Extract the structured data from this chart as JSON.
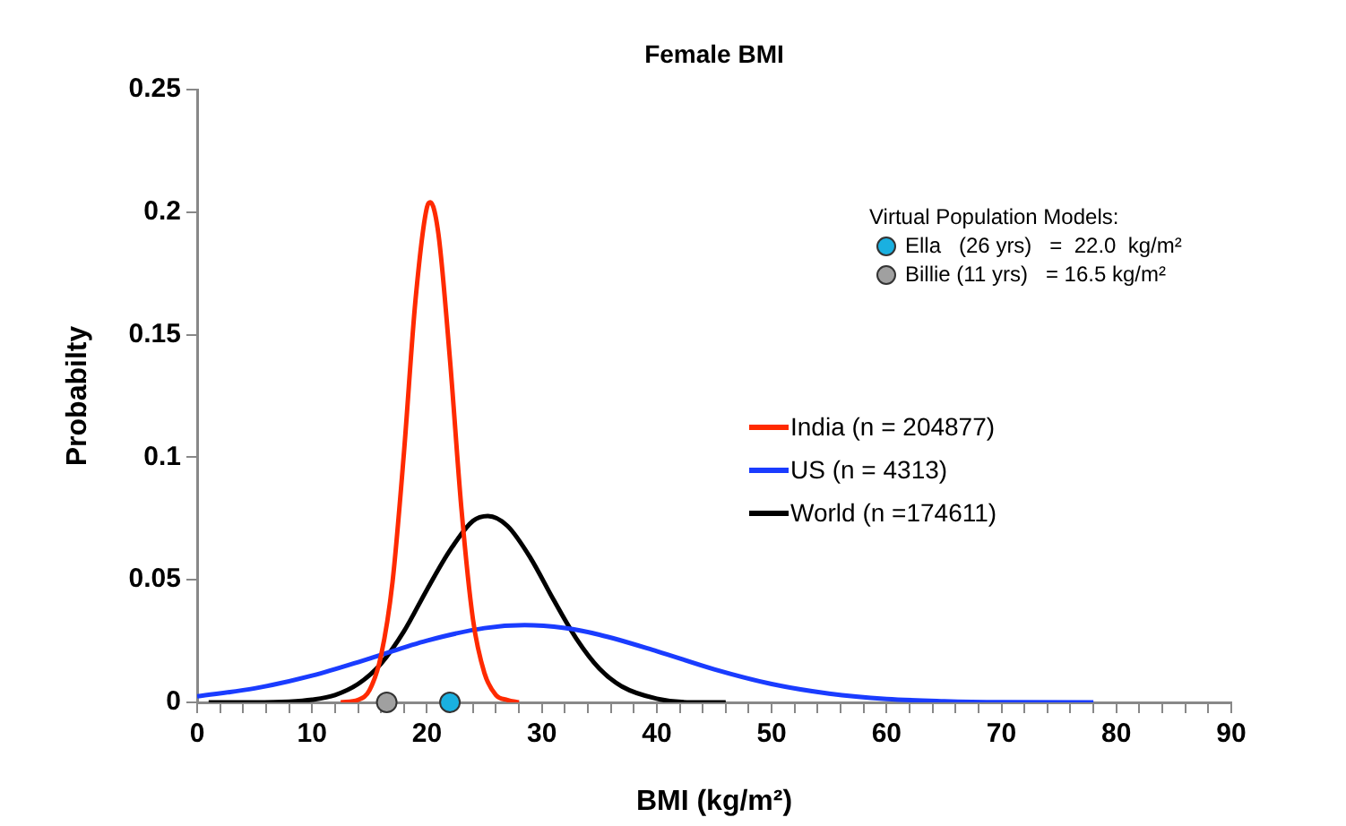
{
  "chart_data": {
    "type": "line",
    "title": "Female BMI",
    "xlabel": "BMI (kg/m²)",
    "ylabel": "Probabilty",
    "legend_title": "Virtual Population Models:",
    "legend": "right",
    "grid": false,
    "xlim": [
      0,
      90
    ],
    "xticks": [
      0,
      {
        "value": 2,
        "label": null
      },
      {
        "value": 4,
        "label": null
      },
      {
        "value": 6,
        "label": null
      },
      {
        "value": 8,
        "label": null
      },
      10,
      {
        "value": 12,
        "label": null
      },
      {
        "value": 14,
        "label": null
      },
      {
        "value": 16,
        "label": null
      },
      {
        "value": 18,
        "label": null
      },
      20,
      {
        "value": 22,
        "label": null
      },
      {
        "value": 24,
        "label": null
      },
      {
        "value": 26,
        "label": null
      },
      {
        "value": 28,
        "label": null
      },
      30,
      {
        "value": 32,
        "label": null
      },
      {
        "value": 34,
        "label": null
      },
      {
        "value": 36,
        "label": null
      },
      {
        "value": 38,
        "label": null
      },
      40,
      {
        "value": 42,
        "label": null
      },
      {
        "value": 44,
        "label": null
      },
      {
        "value": 46,
        "label": null
      },
      {
        "value": 48,
        "label": null
      },
      50,
      {
        "value": 52,
        "label": null
      },
      {
        "value": 54,
        "label": null
      },
      {
        "value": 56,
        "label": null
      },
      {
        "value": 58,
        "label": null
      },
      60,
      {
        "value": 62,
        "label": null
      },
      {
        "value": 64,
        "label": null
      },
      {
        "value": 66,
        "label": null
      },
      {
        "value": 68,
        "label": null
      },
      70,
      {
        "value": 72,
        "label": null
      },
      {
        "value": 74,
        "label": null
      },
      {
        "value": 76,
        "label": null
      },
      {
        "value": 78,
        "label": null
      },
      80,
      {
        "value": 82,
        "label": null
      },
      {
        "value": 84,
        "label": null
      },
      {
        "value": 86,
        "label": null
      },
      {
        "value": 88,
        "label": null
      },
      90
    ],
    "ylim": [
      0,
      0.25
    ],
    "yticks": [
      0,
      0.05,
      0.1,
      0.15,
      0.2,
      0.25
    ],
    "series": [
      {
        "name": "India (n = 204877)",
        "marker": "none",
        "color": "#ff2a00",
        "x": [
          12.5,
          14,
          15,
          16,
          17,
          18,
          19,
          20,
          20.3,
          21,
          22,
          23,
          24,
          25,
          26,
          27,
          28
        ],
        "values": [
          0,
          0.001,
          0.005,
          0.019,
          0.049,
          0.102,
          0.164,
          0.202,
          0.204,
          0.191,
          0.14,
          0.079,
          0.034,
          0.012,
          0.003,
          0.001,
          0
        ]
      },
      {
        "name": "US (n = 4313)",
        "marker": "none",
        "color": "#1a3cff",
        "x": [
          0,
          5,
          10,
          15,
          20,
          25,
          28.5,
          32,
          35,
          40,
          45,
          50,
          55,
          60,
          65,
          70,
          78
        ],
        "values": [
          0.0025,
          0.0057,
          0.0109,
          0.0179,
          0.0252,
          0.0303,
          0.0315,
          0.0303,
          0.0276,
          0.0209,
          0.0135,
          0.0075,
          0.0036,
          0.0014,
          0.0005,
          0.0001,
          0
        ]
      },
      {
        "name": "World (n =174611)",
        "marker": "none",
        "color": "#000000",
        "x": [
          1,
          5,
          8,
          10,
          12,
          14,
          16,
          18,
          20,
          22,
          24,
          25.3,
          27,
          29,
          31,
          33,
          35,
          37,
          40,
          43,
          46
        ],
        "values": [
          0,
          0,
          0.0003,
          0.0011,
          0.003,
          0.0075,
          0.0158,
          0.029,
          0.046,
          0.062,
          0.074,
          0.076,
          0.072,
          0.059,
          0.042,
          0.026,
          0.0138,
          0.0064,
          0.0015,
          0,
          0
        ]
      },
      {
        "name": "Ella   (26 yrs)   =  22.0  kg/m²",
        "type": "scatter",
        "marker": "circle",
        "color": "#1ab0e0",
        "x": [
          22.0
        ],
        "values": [
          0
        ]
      },
      {
        "name": "Billie (11 yrs)   = 16.5 kg/m²",
        "type": "scatter",
        "marker": "circle",
        "color": "#a0a0a0",
        "x": [
          16.5
        ],
        "values": [
          0
        ]
      }
    ]
  }
}
